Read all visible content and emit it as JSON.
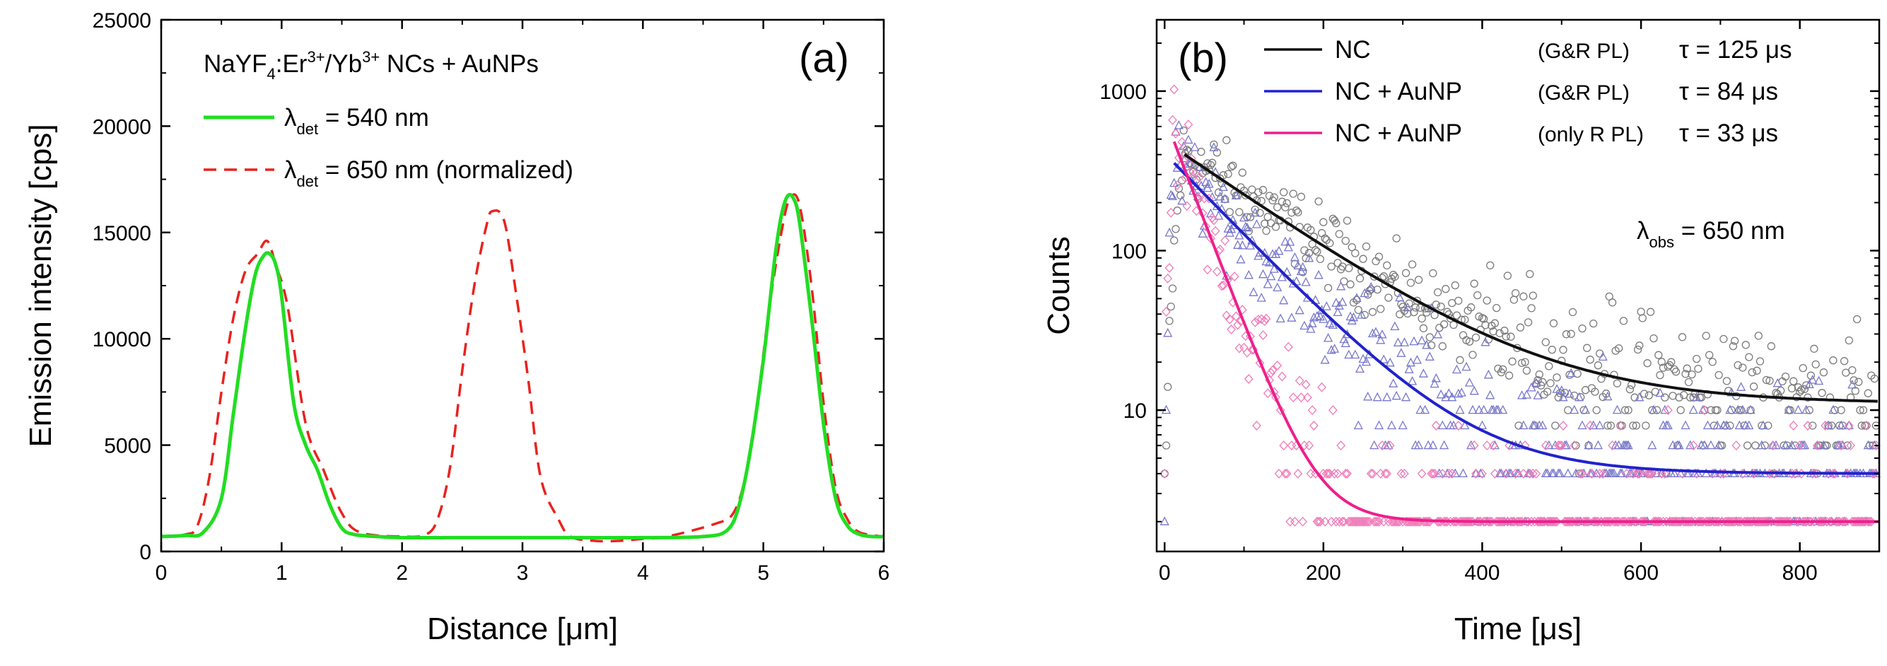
{
  "chart_data": [
    {
      "panel": "(a)",
      "type": "line",
      "xlabel_main": "Distance [",
      "xlabel_unit": "μm",
      "xlabel_close": "]",
      "ylabel": "Emission intensity [cps]",
      "xlim": [
        0,
        6
      ],
      "ylim": [
        0,
        25000
      ],
      "xticks": [
        "0",
        "1",
        "2",
        "3",
        "4",
        "5",
        "6"
      ],
      "yticks": [
        "0",
        "5000",
        "10000",
        "15000",
        "20000",
        "25000"
      ],
      "title_line": {
        "pre": "NaYF",
        "sub": "4",
        "mid1": ":Er",
        "sup1": "3+",
        "mid2": "/Yb",
        "sup2": "3+",
        "post": " NCs + AuNPs"
      },
      "series": [
        {
          "name": "540",
          "legend_symbol": "λ",
          "legend_sub": "det",
          "legend_text": " = 540 nm",
          "color": "#22dd22",
          "style": "solid",
          "x": [
            0,
            0.2,
            0.35,
            0.5,
            0.6,
            0.7,
            0.78,
            0.85,
            0.9,
            0.95,
            1.0,
            1.1,
            1.2,
            1.3,
            1.4,
            1.5,
            1.6,
            1.8,
            2.0,
            2.5,
            3.0,
            3.5,
            4.0,
            4.5,
            4.7,
            4.8,
            4.9,
            5.0,
            5.05,
            5.1,
            5.15,
            5.2,
            5.25,
            5.3,
            5.4,
            5.5,
            5.6,
            5.7,
            5.8,
            5.9,
            6.0
          ],
          "y": [
            700,
            750,
            900,
            2500,
            6500,
            10500,
            13000,
            13900,
            14000,
            13500,
            12000,
            7000,
            5000,
            3800,
            2200,
            1100,
            800,
            700,
            650,
            650,
            650,
            650,
            650,
            700,
            1000,
            2200,
            5000,
            9000,
            11500,
            14000,
            15800,
            16700,
            16600,
            15500,
            11000,
            6000,
            2500,
            1200,
            800,
            700,
            700
          ]
        },
        {
          "name": "650",
          "legend_symbol": "λ",
          "legend_sub": "det",
          "legend_text": " = 650 nm (normalized)",
          "color": "#e8231f",
          "style": "dashed",
          "x": [
            0,
            0.2,
            0.3,
            0.4,
            0.5,
            0.6,
            0.7,
            0.8,
            0.88,
            0.95,
            1.05,
            1.2,
            1.35,
            1.5,
            1.65,
            2.0,
            2.2,
            2.3,
            2.4,
            2.5,
            2.6,
            2.7,
            2.75,
            2.85,
            2.95,
            3.05,
            3.15,
            3.3,
            3.4,
            3.6,
            3.8,
            4.0,
            4.2,
            4.6,
            4.75,
            4.85,
            4.95,
            5.05,
            5.15,
            5.22,
            5.3,
            5.4,
            5.5,
            5.6,
            5.7,
            5.8,
            6.0
          ],
          "y": [
            700,
            800,
            1200,
            3500,
            7500,
            11000,
            13200,
            14000,
            14600,
            13500,
            11500,
            6000,
            3800,
            1800,
            900,
            700,
            800,
            1600,
            4000,
            8500,
            12500,
            15300,
            16000,
            15500,
            12000,
            8000,
            3500,
            1500,
            700,
            500,
            500,
            600,
            700,
            1300,
            1800,
            3500,
            7000,
            11500,
            15000,
            16600,
            16300,
            12500,
            7000,
            3000,
            1500,
            900,
            700
          ]
        }
      ]
    },
    {
      "panel": "(b)",
      "type": "scatter",
      "yscale": "log",
      "xlabel_main": "Time [",
      "xlabel_unit": "μs",
      "xlabel_close": "]",
      "ylabel": "Counts",
      "xlim": [
        -10,
        900
      ],
      "ylim": [
        1.3,
        2800
      ],
      "xticks": [
        "0",
        "200",
        "400",
        "600",
        "800"
      ],
      "yticks": [
        "10",
        "100",
        "1000"
      ],
      "annotation": {
        "symbol": "λ",
        "sub": "obs",
        "text": " = 650 nm"
      },
      "series": [
        {
          "name": "NC",
          "condition": "(G&R PL)",
          "tau_label": "τ = 125 μs",
          "color": "#111111",
          "marker_color": "#7a7a7a",
          "marker": "circle",
          "fit": {
            "model": "exp",
            "amplitude": 390,
            "tau": 125,
            "offset": 11,
            "t0": 25
          },
          "peak": 420,
          "noise_span": 0.5
        },
        {
          "name": "NC + AuNP",
          "condition": "(G&R PL)",
          "tau_label": "τ = 84 μs",
          "color": "#2222cc",
          "marker_color": "#7777cc",
          "marker": "triangle",
          "fit": {
            "model": "exp",
            "amplitude": 350,
            "tau": 84,
            "offset": 4,
            "t0": 12
          },
          "peak": 380,
          "noise_span": 0.6
        },
        {
          "name": "NC + AuNP",
          "condition": "(only R PL)",
          "tau_label": "τ = 33 μs",
          "color": "#ee1f8c",
          "marker_color": "#f07bb8",
          "marker": "diamond",
          "fit": {
            "model": "exp",
            "amplitude": 480,
            "tau": 33,
            "offset": 2,
            "t0": 12
          },
          "peak": 470,
          "noise_span": 0.65
        }
      ]
    }
  ]
}
